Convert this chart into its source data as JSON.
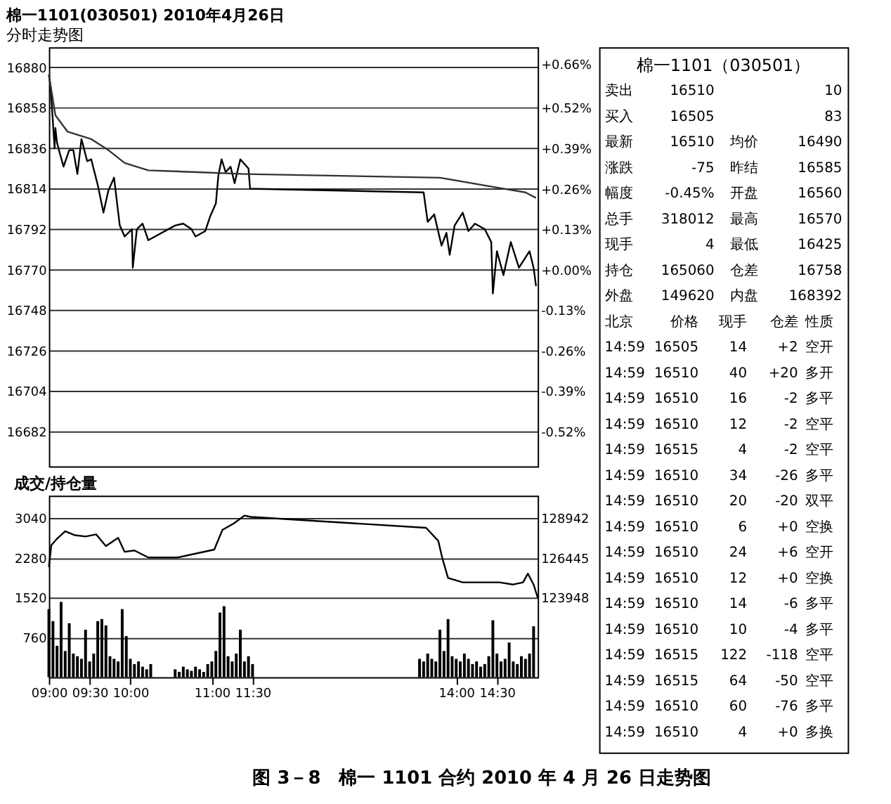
{
  "chart_data": [
    {
      "type": "line",
      "title": "棉一1101(030501) 2010年4月26日",
      "subtitle": "分时走势图",
      "xlim": [
        9,
        15
      ],
      "ylim": [
        16663,
        16891
      ],
      "yticks": [
        16880,
        16858,
        16836,
        16814,
        16792,
        16770,
        16748,
        16726,
        16704,
        16682
      ],
      "y2lim": [
        -0.632,
        0.715
      ],
      "y2ticks": [
        {
          "value": 0.66,
          "label": "+0.66%"
        },
        {
          "value": 0.52,
          "label": "+0.52%"
        },
        {
          "value": 0.39,
          "label": "+0.39%"
        },
        {
          "value": 0.26,
          "label": "+0.26%"
        },
        {
          "value": 0.13,
          "label": "+0.13%"
        },
        {
          "value": 0,
          "label": "+0.00%"
        },
        {
          "value": -0.13,
          "label": "-0.13%"
        },
        {
          "value": -0.26,
          "label": "-0.26%"
        },
        {
          "value": -0.39,
          "label": "-0.39%"
        },
        {
          "value": -0.52,
          "label": "-0.52%"
        }
      ],
      "grid": "y",
      "tick_labels": "y",
      "series": [
        {
          "type": "line",
          "color": "#000000",
          "x": [
            9,
            9.02,
            9.05,
            9.07,
            9.08,
            9.1,
            9.13,
            9.18,
            9.25,
            9.3,
            9.35,
            9.4,
            9.47,
            9.52,
            9.6,
            9.67,
            9.73,
            9.8,
            9.87,
            9.93,
            10.02,
            10.03,
            10.08,
            10.15,
            10.22,
            10.55,
            10.65,
            10.75,
            10.8,
            10.92,
            10.98,
            11.05,
            11.08,
            11.12,
            11.17,
            11.23,
            11.28,
            11.35,
            11.45,
            11.47,
            13.6,
            13.65,
            13.73,
            13.82,
            13.88,
            13.92,
            13.98,
            14.08,
            14.15,
            14.23,
            14.35,
            14.43,
            14.45,
            14.5,
            14.58,
            14.67,
            14.77,
            14.9,
            14.95,
            14.98
          ],
          "values": [
            16876,
            16870,
            16850,
            16836,
            16847,
            16839,
            16834,
            16826,
            16835,
            16835,
            16822,
            16841,
            16829,
            16830,
            16816,
            16801,
            16813,
            16820,
            16794,
            16788,
            16792,
            16771,
            16792,
            16795,
            16786,
            16794,
            16795,
            16792,
            16788,
            16791,
            16799,
            16806,
            16821,
            16830,
            16823,
            16826,
            16817,
            16830,
            16825,
            16814,
            16812,
            16796,
            16800,
            16783,
            16790,
            16778,
            16794,
            16801,
            16791,
            16795,
            16792,
            16785,
            16757,
            16780,
            16767,
            16785,
            16771,
            16780,
            16771,
            16761
          ]
        },
        {
          "type": "line",
          "color": "#333333",
          "x": [
            9,
            9.08,
            9.23,
            9.52,
            9.73,
            9.93,
            10.22,
            10.83,
            11.4,
            13.8,
            14.45,
            14.85,
            14.98
          ],
          "values": [
            16876,
            16854,
            16845,
            16841,
            16835,
            16828,
            16824,
            16823,
            16822,
            16820,
            16815,
            16812,
            16809
          ]
        }
      ]
    },
    {
      "type": "bar",
      "title": "成交/持仓量",
      "xlim": [
        9,
        15
      ],
      "xticks": [
        {
          "value": 9,
          "label": "09:00"
        },
        {
          "value": 9.5,
          "label": "09:30"
        },
        {
          "value": 10,
          "label": "10:00"
        },
        {
          "value": 11,
          "label": "11:00"
        },
        {
          "value": 11.5,
          "label": "11:30"
        },
        {
          "value": 14,
          "label": "14:00"
        },
        {
          "value": 14.5,
          "label": "14:30"
        }
      ],
      "ylim": [
        0,
        3470
      ],
      "yticks": [
        760,
        1520,
        2280,
        3040
      ],
      "y2lim": [
        118954,
        130355
      ],
      "y2ticks": [
        123948,
        126445,
        128942
      ],
      "grid": "y",
      "annotations": [
        "图 3－8　棉一 1101 合约 2010 年 4 月 26 日走势图"
      ],
      "series": [
        {
          "type": "bar",
          "color": "#000000",
          "x": [
            9,
            9.05,
            9.1,
            9.15,
            9.2,
            9.25,
            9.3,
            9.35,
            9.4,
            9.45,
            9.5,
            9.55,
            9.6,
            9.65,
            9.7,
            9.75,
            9.8,
            9.85,
            9.9,
            9.95,
            10,
            10.05,
            10.1,
            10.15,
            10.2,
            10.25,
            10.55,
            10.6,
            10.65,
            10.7,
            10.75,
            10.8,
            10.85,
            10.9,
            10.95,
            11,
            11.05,
            11.1,
            11.15,
            11.2,
            11.25,
            11.3,
            11.35,
            11.4,
            11.45,
            11.5,
            13.55,
            13.6,
            13.65,
            13.7,
            13.75,
            13.8,
            13.85,
            13.9,
            13.95,
            14,
            14.05,
            14.1,
            14.15,
            14.2,
            14.25,
            14.3,
            14.35,
            14.4,
            14.45,
            14.5,
            14.55,
            14.6,
            14.65,
            14.7,
            14.75,
            14.8,
            14.85,
            14.9,
            14.95
          ],
          "values": [
            1300,
            1070,
            600,
            1438,
            500,
            1030,
            450,
            400,
            350,
            907,
            300,
            450,
            1070,
            1110,
            989,
            400,
            350,
            300,
            1300,
            785,
            350,
            250,
            300,
            200,
            150,
            250,
            150,
            100,
            200,
            150,
            120,
            200,
            150,
            100,
            250,
            300,
            500,
            1234,
            1356,
            400,
            300,
            450,
            907,
            300,
            400,
            250,
            350,
            300,
            450,
            350,
            300,
            907,
            500,
            1110,
            400,
            350,
            300,
            450,
            350,
            250,
            300,
            200,
            250,
            400,
            1087,
            450,
            300,
            350,
            662,
            300,
            250,
            400,
            350,
            450,
            972
          ]
        },
        {
          "type": "line",
          "axis": "y2",
          "color": "#000000",
          "x": [
            9,
            9.03,
            9.1,
            9.2,
            9.32,
            9.45,
            9.58,
            9.7,
            9.85,
            9.93,
            10.05,
            10.22,
            10.58,
            10.83,
            11.03,
            11.13,
            11.27,
            11.4,
            11.48,
            13.63,
            13.78,
            13.83,
            13.9,
            14.08,
            14.28,
            14.53,
            14.7,
            14.82,
            14.88,
            14.95,
            15
          ],
          "values": [
            125866,
            127236,
            127647,
            128113,
            127866,
            127784,
            127921,
            127181,
            127702,
            126825,
            126907,
            126469,
            126469,
            126743,
            126962,
            128195,
            128606,
            129099,
            129017,
            128332,
            127510,
            126414,
            125181,
            124907,
            124907,
            124907,
            124770,
            124907,
            125455,
            124770,
            123948
          ]
        }
      ]
    },
    {
      "type": "other",
      "title": "棉一1101（030501）",
      "annotations": [
        "卖出 16510 10",
        "买入 16505 83",
        "最新 16510 均价 16490",
        "涨跌 -75 昨结 16585",
        "幅度 -0.45% 开盘 16560",
        "总手 318012 最高 16570",
        "现手 4 最低 16425",
        "持仓 165060 仓差 16758",
        "外盘 149620 内盘 168392",
        "北京 价格 现手 仓差 性质",
        "14:59 16505 14 +2 空开",
        "14:59 16510 40 +20 多开",
        "14:59 16510 16 -2 多平",
        "14:59 16510 12 -2 空平",
        "14:59 16515 4 -2 空平",
        "14:59 16510 34 -26 多平",
        "14:59 16510 20 -20 双平",
        "14:59 16510 6 +0 空换",
        "14:59 16510 24 +6 空开",
        "14:59 16510 12 +0 空换",
        "14:59 16510 14 -6 多平",
        "14:59 16510 10 -4 多平",
        "14:59 16515 122 -118 空平",
        "14:59 16515 64 -50 空平",
        "14:59 16510 60 -76 多平",
        "14:59 16510 4 +0 多换"
      ]
    }
  ]
}
